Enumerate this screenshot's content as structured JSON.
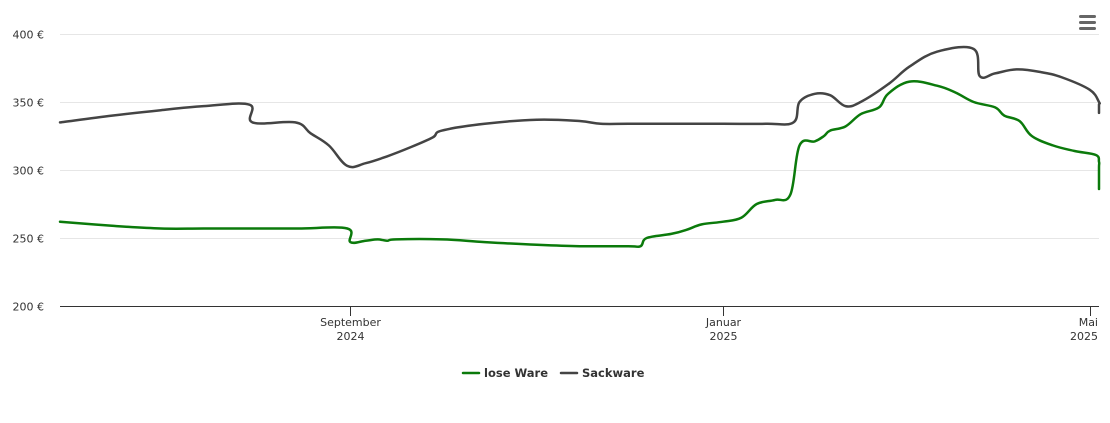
{
  "chart_data": {
    "type": "line",
    "title": "",
    "xlabel": "",
    "ylabel": "",
    "ylim": [
      200,
      400
    ],
    "yticks": [
      {
        "value": 400,
        "label": "400 €"
      },
      {
        "value": 350,
        "label": "350 €"
      },
      {
        "value": 300,
        "label": "300 €"
      },
      {
        "value": 250,
        "label": "250 €"
      },
      {
        "value": 200,
        "label": "200 €"
      }
    ],
    "xlim": [
      "2024-05-29",
      "2025-05-04"
    ],
    "xticks": [
      {
        "date": "2024-09-01",
        "line1": "September",
        "line2": "2024"
      },
      {
        "date": "2025-01-01",
        "line1": "Januar",
        "line2": "2025"
      },
      {
        "date": "2025-05-01",
        "line1": "Mai",
        "line2": "2025"
      }
    ],
    "grid": true,
    "legend": "bottom-center",
    "series": [
      {
        "name": "lose Ware",
        "color": "#0b7a0b",
        "points": [
          [
            "2024-05-29",
            262
          ],
          [
            "2024-06-15",
            259
          ],
          [
            "2024-07-01",
            257
          ],
          [
            "2024-07-15",
            257
          ],
          [
            "2024-08-01",
            257
          ],
          [
            "2024-08-15",
            257
          ],
          [
            "2024-08-31",
            257
          ],
          [
            "2024-09-01",
            247
          ],
          [
            "2024-09-06",
            248
          ],
          [
            "2024-09-10",
            249
          ],
          [
            "2024-09-13",
            248
          ],
          [
            "2024-09-16",
            249
          ],
          [
            "2024-10-01",
            249
          ],
          [
            "2024-10-15",
            247
          ],
          [
            "2024-11-01",
            245
          ],
          [
            "2024-11-15",
            244
          ],
          [
            "2024-12-01",
            244
          ],
          [
            "2024-12-05",
            244
          ],
          [
            "2024-12-07",
            250
          ],
          [
            "2024-12-15",
            253
          ],
          [
            "2024-12-20",
            256
          ],
          [
            "2024-12-25",
            260
          ],
          [
            "2025-01-01",
            262
          ],
          [
            "2025-01-07",
            265
          ],
          [
            "2025-01-12",
            275
          ],
          [
            "2025-01-18",
            278
          ],
          [
            "2025-01-23",
            282
          ],
          [
            "2025-01-26",
            318
          ],
          [
            "2025-01-31",
            321
          ],
          [
            "2025-02-03",
            325
          ],
          [
            "2025-02-05",
            329
          ],
          [
            "2025-02-10",
            332
          ],
          [
            "2025-02-15",
            341
          ],
          [
            "2025-02-21",
            346
          ],
          [
            "2025-02-24",
            356
          ],
          [
            "2025-03-03",
            365
          ],
          [
            "2025-03-12",
            362
          ],
          [
            "2025-03-18",
            357
          ],
          [
            "2025-03-24",
            350
          ],
          [
            "2025-03-31",
            346
          ],
          [
            "2025-04-03",
            340
          ],
          [
            "2025-04-08",
            336
          ],
          [
            "2025-04-12",
            325
          ],
          [
            "2025-04-19",
            318
          ],
          [
            "2025-04-26",
            314
          ],
          [
            "2025-05-03",
            311
          ],
          [
            "2025-05-08",
            306
          ],
          [
            "2025-05-12",
            302
          ],
          [
            "2025-05-12",
            287
          ],
          [
            "2025-05-14",
            288
          ]
        ]
      },
      {
        "name": "Sackware",
        "color": "#444444",
        "points": [
          [
            "2024-05-29",
            335
          ],
          [
            "2024-06-15",
            340
          ],
          [
            "2024-07-01",
            344
          ],
          [
            "2024-07-15",
            347
          ],
          [
            "2024-07-30",
            348
          ],
          [
            "2024-07-31",
            335
          ],
          [
            "2024-08-14",
            335
          ],
          [
            "2024-08-19",
            327
          ],
          [
            "2024-08-25",
            318
          ],
          [
            "2024-08-31",
            303
          ],
          [
            "2024-09-06",
            305
          ],
          [
            "2024-09-13",
            310
          ],
          [
            "2024-09-21",
            317
          ],
          [
            "2024-09-28",
            324
          ],
          [
            "2024-10-01",
            329
          ],
          [
            "2024-10-15",
            334
          ],
          [
            "2024-11-01",
            337
          ],
          [
            "2024-11-15",
            336
          ],
          [
            "2024-11-22",
            334
          ],
          [
            "2024-12-01",
            334
          ],
          [
            "2024-12-15",
            334
          ],
          [
            "2025-01-01",
            334
          ],
          [
            "2025-01-15",
            334
          ],
          [
            "2025-01-24",
            335
          ],
          [
            "2025-01-26",
            350
          ],
          [
            "2025-01-31",
            356
          ],
          [
            "2025-02-05",
            355
          ],
          [
            "2025-02-10",
            347
          ],
          [
            "2025-02-15",
            350
          ],
          [
            "2025-02-24",
            363
          ],
          [
            "2025-03-03",
            376
          ],
          [
            "2025-03-12",
            387
          ],
          [
            "2025-03-24",
            389
          ],
          [
            "2025-03-26",
            369
          ],
          [
            "2025-03-31",
            371
          ],
          [
            "2025-04-07",
            374
          ],
          [
            "2025-04-15",
            372
          ],
          [
            "2025-04-22",
            368
          ],
          [
            "2025-05-01",
            359
          ],
          [
            "2025-05-08",
            350
          ],
          [
            "2025-05-14",
            348
          ],
          [
            "2025-05-15",
            342
          ]
        ]
      }
    ]
  }
}
